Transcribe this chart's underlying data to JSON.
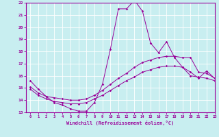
{
  "xlabel": "Windchill (Refroidissement éolien,°C)",
  "bg_color": "#c8eef0",
  "line_color": "#990099",
  "grid_color": "#ffffff",
  "xmin": 0,
  "xmax": 23,
  "ymin": 13,
  "ymax": 22,
  "curve1_x": [
    0,
    1,
    2,
    3,
    4,
    5,
    6,
    7,
    8,
    9,
    10,
    11,
    12,
    13,
    14,
    15,
    16,
    17,
    18,
    19,
    20,
    21,
    22,
    23
  ],
  "curve1_y": [
    15.6,
    14.9,
    14.3,
    13.8,
    13.6,
    13.3,
    13.1,
    13.1,
    13.8,
    15.3,
    18.2,
    21.5,
    21.5,
    22.2,
    21.3,
    18.7,
    17.9,
    18.8,
    17.5,
    16.7,
    16.3,
    15.8,
    16.4,
    15.8
  ],
  "curve2_x": [
    0,
    1,
    2,
    3,
    4,
    5,
    6,
    7,
    8,
    9,
    10,
    11,
    12,
    13,
    14,
    15,
    16,
    17,
    18,
    19,
    20,
    21,
    22,
    23
  ],
  "curve2_y": [
    15.1,
    14.6,
    14.3,
    14.2,
    14.1,
    14.0,
    14.0,
    14.1,
    14.4,
    14.8,
    15.3,
    15.8,
    16.2,
    16.7,
    17.1,
    17.3,
    17.5,
    17.6,
    17.6,
    17.5,
    17.5,
    16.3,
    16.2,
    15.8
  ],
  "curve3_x": [
    0,
    1,
    2,
    3,
    4,
    5,
    6,
    7,
    8,
    9,
    10,
    11,
    12,
    13,
    14,
    15,
    16,
    17,
    18,
    19,
    20,
    21,
    22,
    23
  ],
  "curve3_y": [
    14.9,
    14.4,
    14.1,
    13.9,
    13.8,
    13.7,
    13.7,
    13.8,
    14.1,
    14.4,
    14.8,
    15.2,
    15.6,
    15.9,
    16.3,
    16.5,
    16.7,
    16.8,
    16.8,
    16.7,
    16.0,
    15.9,
    15.8,
    15.6
  ],
  "yticks": [
    13,
    14,
    15,
    16,
    17,
    18,
    19,
    20,
    21,
    22
  ],
  "xticks": [
    0,
    1,
    2,
    3,
    4,
    5,
    6,
    7,
    8,
    9,
    10,
    11,
    12,
    13,
    14,
    15,
    16,
    17,
    18,
    19,
    20,
    21,
    22,
    23
  ]
}
